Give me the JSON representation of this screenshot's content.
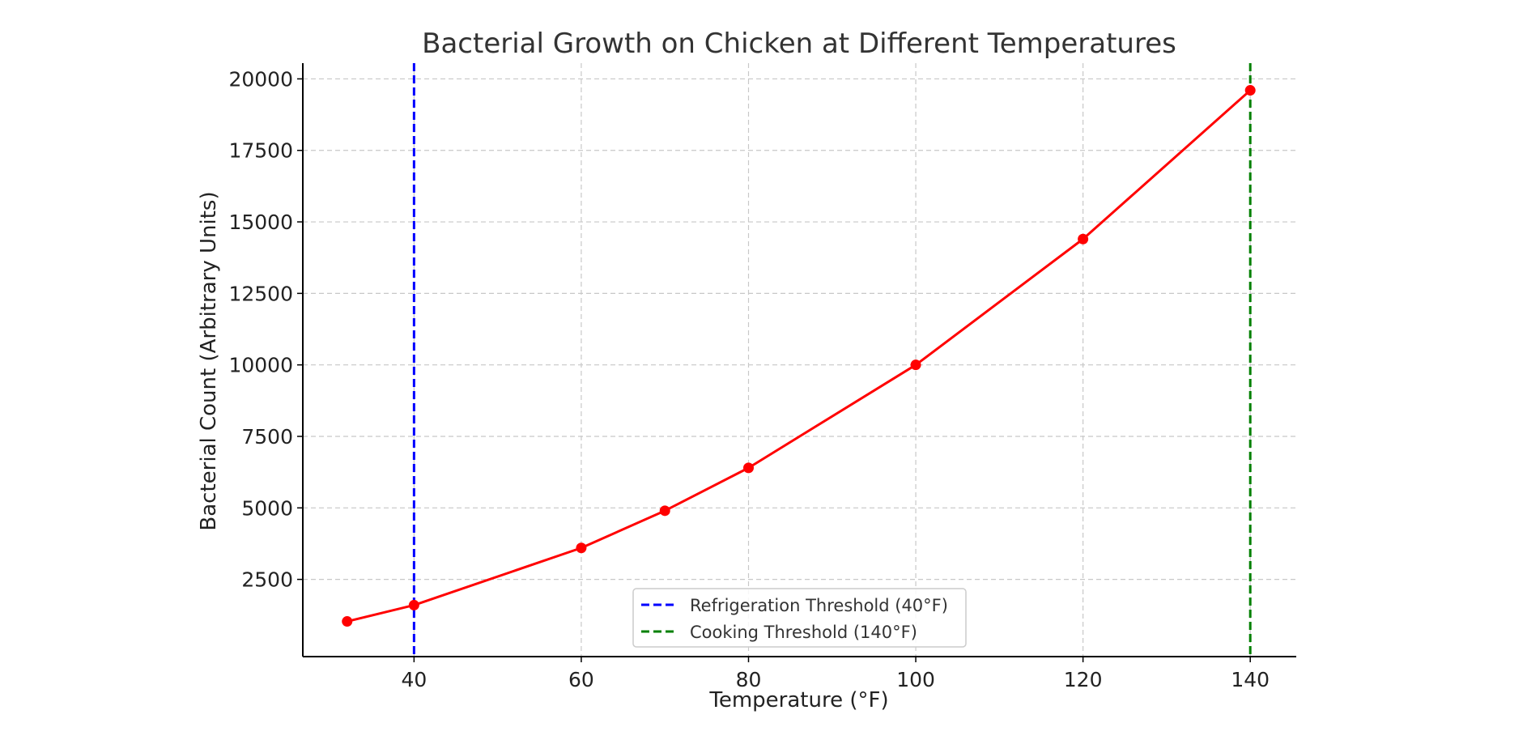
{
  "chart_data": {
    "type": "line",
    "title": "Bacterial Growth on Chicken at Different Temperatures",
    "xlabel": "Temperature (°F)",
    "ylabel": "Bacterial Count (Arbitrary Units)",
    "xlim": [
      26.7,
      145.5
    ],
    "ylim": [
      -200,
      20550
    ],
    "xticks": [
      40,
      60,
      80,
      100,
      120,
      140
    ],
    "yticks": [
      2500,
      5000,
      7500,
      10000,
      12500,
      15000,
      17500,
      20000
    ],
    "grid": true,
    "legend_position": "lower-center",
    "series": [
      {
        "x": [
          32,
          40,
          60,
          70,
          80,
          100,
          120,
          140
        ],
        "y": [
          1030,
          1600,
          3600,
          4900,
          6400,
          10000,
          14400,
          19600
        ],
        "color": "#ff0000",
        "marker": "circle"
      }
    ],
    "reference_lines": [
      {
        "name": "Refrigeration Threshold (40°F)",
        "x": 40,
        "color": "#0000ff",
        "style": "dashed"
      },
      {
        "name": "Cooking Threshold (140°F)",
        "x": 140,
        "color": "#008000",
        "style": "dashed"
      }
    ]
  }
}
